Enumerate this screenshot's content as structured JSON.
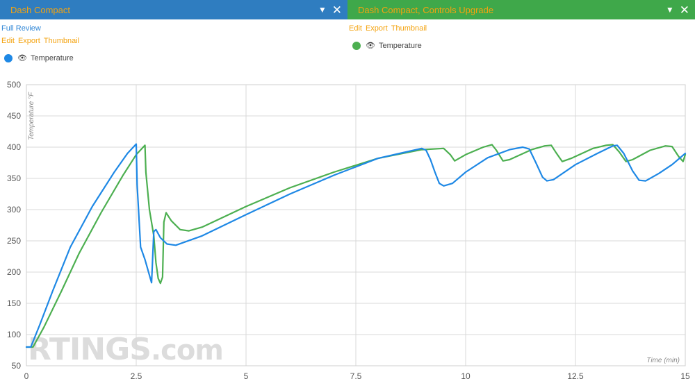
{
  "panels": [
    {
      "title": "Dash Compact",
      "top_link": "Full Review",
      "links": [
        "Edit",
        "Export",
        "Thumbnail"
      ],
      "legend_label": "Temperature",
      "color": "#1e88e5",
      "header_color": "#2f7dc0"
    },
    {
      "title": "Dash Compact, Controls Upgrade",
      "links": [
        "Edit",
        "Export",
        "Thumbnail"
      ],
      "legend_label": "Temperature",
      "color": "#4caf50",
      "header_color": "#3fa84a"
    }
  ],
  "icons": {
    "dropdown": "triangle-down-icon",
    "close": "close-icon",
    "visibility": "eye-icon"
  },
  "watermark": {
    "main": "RTINGS",
    "suffix": ".com"
  },
  "chart_data": {
    "type": "line",
    "ylabel": "Temperature °F",
    "xlabel": "Time (min)",
    "xlim": [
      0,
      15
    ],
    "ylim": [
      50,
      500
    ],
    "xticks": [
      "0",
      "2.5",
      "5",
      "7.5",
      "10",
      "12.5",
      "15"
    ],
    "xtick_values": [
      0,
      2.5,
      5,
      7.5,
      10,
      12.5,
      15
    ],
    "yticks": [
      50,
      100,
      150,
      200,
      250,
      300,
      350,
      400,
      450,
      500
    ],
    "grid": true,
    "series": [
      {
        "name": "Temperature",
        "color": "#1e88e5",
        "points": [
          [
            0,
            80
          ],
          [
            0.1,
            80
          ],
          [
            0.3,
            115
          ],
          [
            0.6,
            170
          ],
          [
            1.0,
            240
          ],
          [
            1.5,
            305
          ],
          [
            2.0,
            360
          ],
          [
            2.3,
            390
          ],
          [
            2.5,
            405
          ],
          [
            2.52,
            340
          ],
          [
            2.6,
            240
          ],
          [
            2.7,
            220
          ],
          [
            2.8,
            195
          ],
          [
            2.85,
            183
          ],
          [
            2.9,
            265
          ],
          [
            2.95,
            268
          ],
          [
            3.05,
            255
          ],
          [
            3.2,
            245
          ],
          [
            3.4,
            243
          ],
          [
            4.0,
            258
          ],
          [
            5.0,
            292
          ],
          [
            6.0,
            325
          ],
          [
            7.0,
            355
          ],
          [
            8.0,
            382
          ],
          [
            8.5,
            390
          ],
          [
            9.0,
            398
          ],
          [
            9.1,
            395
          ],
          [
            9.2,
            380
          ],
          [
            9.3,
            360
          ],
          [
            9.4,
            342
          ],
          [
            9.5,
            338
          ],
          [
            9.7,
            342
          ],
          [
            10.0,
            360
          ],
          [
            10.5,
            383
          ],
          [
            11.0,
            396
          ],
          [
            11.3,
            400
          ],
          [
            11.45,
            397
          ],
          [
            11.6,
            375
          ],
          [
            11.75,
            352
          ],
          [
            11.85,
            346
          ],
          [
            12.0,
            348
          ],
          [
            12.5,
            372
          ],
          [
            13.0,
            390
          ],
          [
            13.35,
            402
          ],
          [
            13.45,
            403
          ],
          [
            13.6,
            390
          ],
          [
            13.8,
            362
          ],
          [
            13.95,
            347
          ],
          [
            14.1,
            346
          ],
          [
            14.4,
            358
          ],
          [
            14.7,
            372
          ],
          [
            15.0,
            390
          ]
        ]
      },
      {
        "name": "Temperature",
        "color": "#4caf50",
        "points": [
          [
            0,
            80
          ],
          [
            0.15,
            80
          ],
          [
            0.4,
            112
          ],
          [
            0.8,
            170
          ],
          [
            1.2,
            230
          ],
          [
            1.7,
            295
          ],
          [
            2.2,
            355
          ],
          [
            2.5,
            388
          ],
          [
            2.7,
            403
          ],
          [
            2.72,
            360
          ],
          [
            2.8,
            300
          ],
          [
            2.9,
            258
          ],
          [
            2.95,
            215
          ],
          [
            3.0,
            190
          ],
          [
            3.05,
            182
          ],
          [
            3.1,
            192
          ],
          [
            3.13,
            280
          ],
          [
            3.18,
            295
          ],
          [
            3.3,
            282
          ],
          [
            3.5,
            268
          ],
          [
            3.7,
            266
          ],
          [
            4.0,
            272
          ],
          [
            5.0,
            305
          ],
          [
            6.0,
            335
          ],
          [
            7.0,
            360
          ],
          [
            8.0,
            382
          ],
          [
            9.0,
            396
          ],
          [
            9.5,
            398
          ],
          [
            9.65,
            388
          ],
          [
            9.75,
            378
          ],
          [
            10.0,
            388
          ],
          [
            10.4,
            400
          ],
          [
            10.6,
            404
          ],
          [
            10.7,
            395
          ],
          [
            10.85,
            378
          ],
          [
            11.0,
            380
          ],
          [
            11.5,
            396
          ],
          [
            11.8,
            402
          ],
          [
            11.95,
            403
          ],
          [
            12.05,
            392
          ],
          [
            12.2,
            377
          ],
          [
            12.4,
            382
          ],
          [
            12.9,
            398
          ],
          [
            13.2,
            403
          ],
          [
            13.35,
            404
          ],
          [
            13.5,
            392
          ],
          [
            13.65,
            377
          ],
          [
            13.8,
            380
          ],
          [
            14.2,
            395
          ],
          [
            14.55,
            402
          ],
          [
            14.7,
            401
          ],
          [
            14.85,
            385
          ],
          [
            14.95,
            377
          ],
          [
            15.0,
            388
          ]
        ]
      }
    ]
  }
}
